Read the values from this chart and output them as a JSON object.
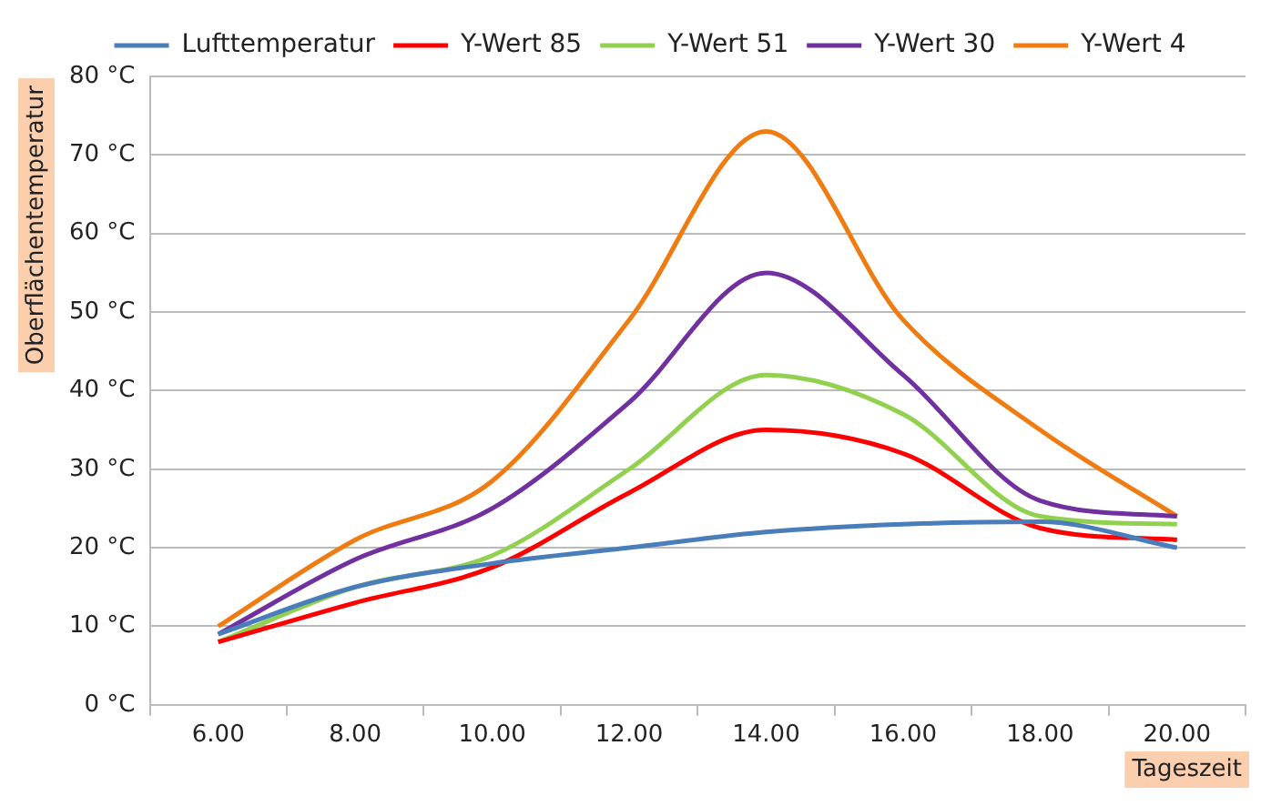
{
  "chart_data": {
    "type": "line",
    "xlabel": "Tageszeit",
    "ylabel": "Oberflächentemperatur",
    "categories": [
      "6.00",
      "8.00",
      "10.00",
      "12.00",
      "14.00",
      "16.00",
      "18.00",
      "20.00"
    ],
    "series": [
      {
        "name": "Lufttemperatur",
        "color": "#4a7ebb",
        "values": [
          9,
          15,
          18,
          20,
          22,
          23,
          23.3,
          20
        ]
      },
      {
        "name": "Y-Wert 85",
        "color": "#ff0000",
        "values": [
          8,
          13,
          17.5,
          27,
          35,
          32,
          22.5,
          21
        ]
      },
      {
        "name": "Y-Wert 51",
        "color": "#92d050",
        "values": [
          8,
          15,
          19,
          30,
          42,
          37,
          24,
          23
        ]
      },
      {
        "name": "Y-Wert 30",
        "color": "#7030a0",
        "values": [
          9,
          18.5,
          25,
          38.5,
          55,
          42,
          26,
          24
        ]
      },
      {
        "name": "Y-Wert 4",
        "color": "#f07b10",
        "values": [
          10,
          21,
          28.5,
          49,
          73,
          49,
          35,
          24
        ]
      }
    ],
    "ylim": [
      0,
      80
    ],
    "yticks": [
      {
        "value": 0,
        "label": "0 °C"
      },
      {
        "value": 10,
        "label": "10 °C"
      },
      {
        "value": 20,
        "label": "20 °C"
      },
      {
        "value": 30,
        "label": "30 °C"
      },
      {
        "value": 40,
        "label": "40 °C"
      },
      {
        "value": 50,
        "label": "50 °C"
      },
      {
        "value": 60,
        "label": "60 °C"
      },
      {
        "value": 70,
        "label": "70 °C"
      },
      {
        "value": 80,
        "label": "80 °C"
      }
    ],
    "grid": "y",
    "legend": "top",
    "marker": "none",
    "line_style": "solid"
  }
}
